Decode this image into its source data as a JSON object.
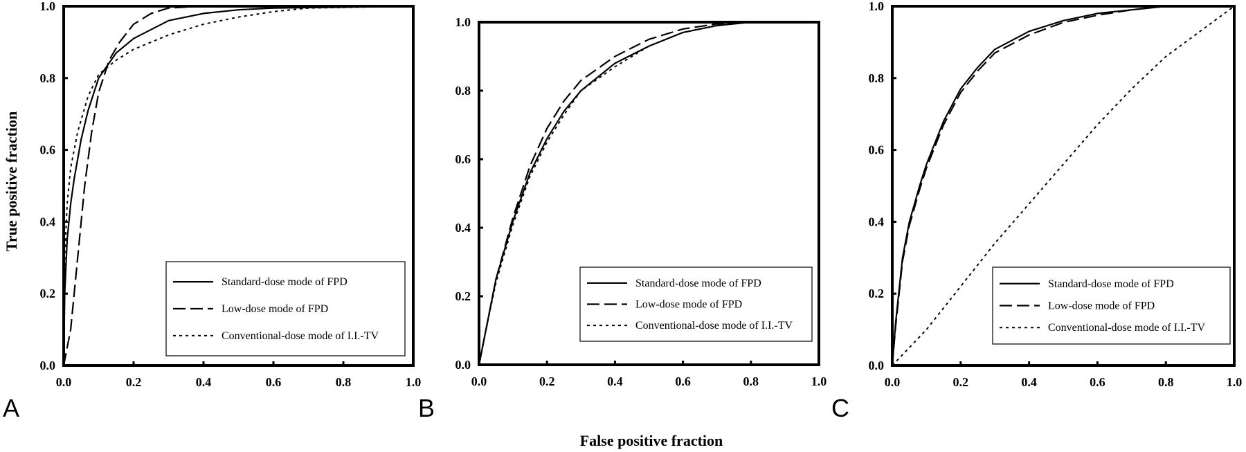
{
  "figure": {
    "x_axis_title": "False positive fraction",
    "y_axis_title": "True positive fraction"
  },
  "chart_data": [
    {
      "type": "line",
      "panel": "A",
      "xlim": [
        0,
        1
      ],
      "ylim": [
        0,
        1
      ],
      "x_ticks": [
        "0.0",
        "0.2",
        "0.4",
        "0.6",
        "0.8",
        "1.0"
      ],
      "y_ticks": [
        "0.0",
        "0.2",
        "0.4",
        "0.6",
        "0.8",
        "1.0"
      ],
      "legend_position": "bottom-right",
      "series": [
        {
          "name": "Standard-dose mode of FPD",
          "style": "solid",
          "points": [
            [
              0,
              0
            ],
            [
              0.003,
              0.2
            ],
            [
              0.01,
              0.35
            ],
            [
              0.02,
              0.45
            ],
            [
              0.03,
              0.52
            ],
            [
              0.05,
              0.63
            ],
            [
              0.07,
              0.71
            ],
            [
              0.1,
              0.8
            ],
            [
              0.15,
              0.87
            ],
            [
              0.2,
              0.91
            ],
            [
              0.3,
              0.96
            ],
            [
              0.4,
              0.98
            ],
            [
              0.5,
              0.99
            ],
            [
              0.6,
              0.995
            ],
            [
              1,
              1
            ]
          ]
        },
        {
          "name": "Low-dose mode of FPD",
          "style": "dashed",
          "points": [
            [
              0,
              0
            ],
            [
              0.02,
              0.1
            ],
            [
              0.04,
              0.3
            ],
            [
              0.06,
              0.5
            ],
            [
              0.08,
              0.65
            ],
            [
              0.1,
              0.76
            ],
            [
              0.13,
              0.85
            ],
            [
              0.16,
              0.9
            ],
            [
              0.2,
              0.95
            ],
            [
              0.25,
              0.98
            ],
            [
              0.3,
              0.995
            ],
            [
              0.4,
              1
            ],
            [
              1,
              1
            ]
          ]
        },
        {
          "name": "Conventional-dose mode of I.I.-TV",
          "style": "dotted",
          "points": [
            [
              0,
              0
            ],
            [
              0.003,
              0.3
            ],
            [
              0.01,
              0.45
            ],
            [
              0.02,
              0.55
            ],
            [
              0.04,
              0.65
            ],
            [
              0.07,
              0.75
            ],
            [
              0.1,
              0.81
            ],
            [
              0.15,
              0.85
            ],
            [
              0.2,
              0.88
            ],
            [
              0.3,
              0.92
            ],
            [
              0.4,
              0.95
            ],
            [
              0.5,
              0.97
            ],
            [
              0.6,
              0.985
            ],
            [
              0.7,
              0.995
            ],
            [
              1,
              1
            ]
          ]
        }
      ]
    },
    {
      "type": "line",
      "panel": "B",
      "xlim": [
        0,
        1
      ],
      "ylim": [
        0,
        1
      ],
      "x_ticks": [
        "0.0",
        "0.2",
        "0.4",
        "0.6",
        "0.8",
        "1.0"
      ],
      "y_ticks": [
        "0.0",
        "0.2",
        "0.4",
        "0.6",
        "0.8",
        "1.0"
      ],
      "legend_position": "bottom-right",
      "series": [
        {
          "name": "Standard-dose mode of FPD",
          "style": "solid",
          "points": [
            [
              0,
              0
            ],
            [
              0.02,
              0.1
            ],
            [
              0.05,
              0.25
            ],
            [
              0.1,
              0.42
            ],
            [
              0.15,
              0.56
            ],
            [
              0.2,
              0.66
            ],
            [
              0.25,
              0.74
            ],
            [
              0.3,
              0.8
            ],
            [
              0.4,
              0.88
            ],
            [
              0.5,
              0.93
            ],
            [
              0.6,
              0.97
            ],
            [
              0.7,
              0.99
            ],
            [
              0.8,
              1
            ],
            [
              1,
              1
            ]
          ]
        },
        {
          "name": "Low-dose mode of FPD",
          "style": "dashed",
          "points": [
            [
              0,
              0
            ],
            [
              0.02,
              0.1
            ],
            [
              0.05,
              0.25
            ],
            [
              0.1,
              0.43
            ],
            [
              0.15,
              0.58
            ],
            [
              0.2,
              0.69
            ],
            [
              0.25,
              0.77
            ],
            [
              0.3,
              0.83
            ],
            [
              0.4,
              0.9
            ],
            [
              0.5,
              0.95
            ],
            [
              0.6,
              0.98
            ],
            [
              0.7,
              0.995
            ],
            [
              0.8,
              1
            ],
            [
              1,
              1
            ]
          ]
        },
        {
          "name": "Conventional-dose mode of I.I.-TV",
          "style": "dotted",
          "points": [
            [
              0,
              0
            ],
            [
              0.02,
              0.1
            ],
            [
              0.05,
              0.24
            ],
            [
              0.1,
              0.41
            ],
            [
              0.15,
              0.55
            ],
            [
              0.2,
              0.65
            ],
            [
              0.25,
              0.73
            ],
            [
              0.3,
              0.8
            ],
            [
              0.4,
              0.87
            ],
            [
              0.5,
              0.93
            ],
            [
              0.6,
              0.97
            ],
            [
              0.7,
              0.99
            ],
            [
              0.8,
              1
            ],
            [
              1,
              1
            ]
          ]
        }
      ]
    },
    {
      "type": "line",
      "panel": "C",
      "xlim": [
        0,
        1
      ],
      "ylim": [
        0,
        1
      ],
      "x_ticks": [
        "0.0",
        "0.2",
        "0.4",
        "0.6",
        "0.8",
        "1.0"
      ],
      "y_ticks": [
        "0.0",
        "0.2",
        "0.4",
        "0.6",
        "0.8",
        "1.0"
      ],
      "legend_position": "bottom-right",
      "series": [
        {
          "name": "Standard-dose mode of FPD",
          "style": "solid",
          "points": [
            [
              0,
              0
            ],
            [
              0.01,
              0.12
            ],
            [
              0.03,
              0.3
            ],
            [
              0.05,
              0.4
            ],
            [
              0.08,
              0.5
            ],
            [
              0.1,
              0.56
            ],
            [
              0.15,
              0.68
            ],
            [
              0.2,
              0.77
            ],
            [
              0.25,
              0.83
            ],
            [
              0.3,
              0.88
            ],
            [
              0.4,
              0.93
            ],
            [
              0.5,
              0.96
            ],
            [
              0.6,
              0.98
            ],
            [
              0.7,
              0.99
            ],
            [
              0.8,
              1
            ],
            [
              1,
              1
            ]
          ]
        },
        {
          "name": "Low-dose mode of FPD",
          "style": "dashed",
          "points": [
            [
              0,
              0
            ],
            [
              0.01,
              0.11
            ],
            [
              0.03,
              0.29
            ],
            [
              0.05,
              0.39
            ],
            [
              0.08,
              0.49
            ],
            [
              0.1,
              0.55
            ],
            [
              0.15,
              0.67
            ],
            [
              0.2,
              0.76
            ],
            [
              0.25,
              0.82
            ],
            [
              0.3,
              0.87
            ],
            [
              0.4,
              0.92
            ],
            [
              0.5,
              0.955
            ],
            [
              0.6,
              0.975
            ],
            [
              0.7,
              0.99
            ],
            [
              0.8,
              1
            ],
            [
              1,
              1
            ]
          ]
        },
        {
          "name": "Conventional-dose mode of I.I.-TV",
          "style": "dotted",
          "points": [
            [
              0,
              0
            ],
            [
              0.05,
              0.05
            ],
            [
              0.1,
              0.1
            ],
            [
              0.15,
              0.16
            ],
            [
              0.2,
              0.22
            ],
            [
              0.3,
              0.34
            ],
            [
              0.4,
              0.45
            ],
            [
              0.5,
              0.56
            ],
            [
              0.6,
              0.67
            ],
            [
              0.7,
              0.77
            ],
            [
              0.8,
              0.86
            ],
            [
              0.9,
              0.93
            ],
            [
              1,
              1
            ]
          ]
        }
      ]
    }
  ]
}
